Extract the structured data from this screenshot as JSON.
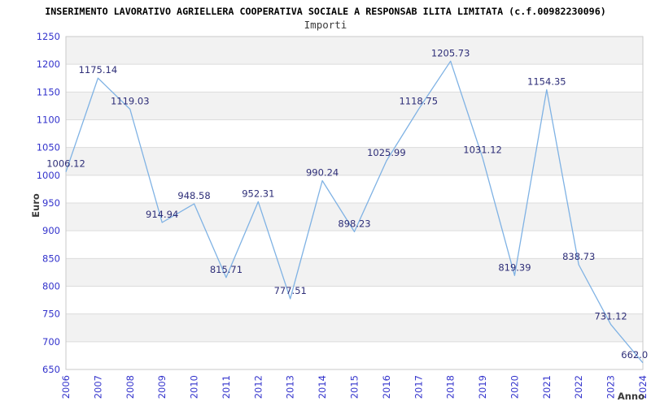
{
  "chart_data": {
    "type": "line",
    "title": "INSERIMENTO LAVORATIVO AGRIELLERA COOPERATIVA SOCIALE A RESPONSAB ILITA LIMITATA (c.f.00982230096)",
    "subtitle": "Importi",
    "xlabel": "Anno",
    "ylabel": "Euro",
    "categories": [
      "2006",
      "2007",
      "2008",
      "2009",
      "2010",
      "2011",
      "2012",
      "2013",
      "2014",
      "2015",
      "2016",
      "2017",
      "2018",
      "2019",
      "2020",
      "2021",
      "2022",
      "2023",
      "2024"
    ],
    "series": [
      {
        "name": "Importi",
        "values": [
          1006.12,
          1175.14,
          1119.03,
          914.94,
          948.58,
          815.71,
          952.31,
          777.51,
          990.24,
          898.23,
          1025.99,
          1118.75,
          1205.73,
          1031.12,
          819.39,
          1154.35,
          838.73,
          731.12,
          662.0
        ]
      }
    ],
    "point_labels": [
      "1006.12",
      "1175.14",
      "1119.03",
      "914.94",
      "948.58",
      "815.71",
      "952.31",
      "777.51",
      "990.24",
      "898.23",
      "1025.99",
      "1118.75",
      "1205.73",
      "1031.12",
      "819.39",
      "1154.35",
      "838.73",
      "731.12",
      "662.0"
    ],
    "ylim": [
      650,
      1250
    ],
    "ytick_step": 50,
    "grid": true,
    "legend": false,
    "background_bands": true,
    "colors": {
      "line": "#7badе0",
      "line_stroke": "#7fb2e4",
      "band": "#f2f2f2",
      "grid": "#dcdcdc",
      "border": "#c9c9c9",
      "tick_label": "#3333cc",
      "value_label": "#2e2e78",
      "title": "#000000",
      "subtitle": "#3a3a3a",
      "axis_label": "#3a3a3a"
    }
  }
}
